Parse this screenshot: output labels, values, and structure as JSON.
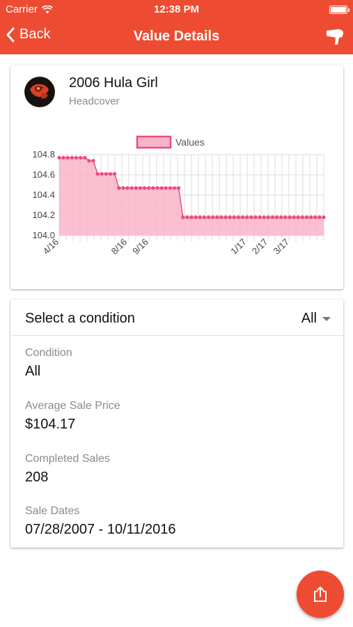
{
  "status_bar": {
    "carrier": "Carrier",
    "time": "12:38 PM",
    "icons": [
      "wifi-icon",
      "battery-icon"
    ]
  },
  "nav": {
    "back_label": "Back",
    "title": "Value Details",
    "back_icon": "chevron-left-icon",
    "action_icon": "golf-club-icon"
  },
  "item": {
    "name": "2006 Hula Girl",
    "type": "Headcover",
    "avatar_icon": "headcover-thumbnail"
  },
  "chart_data": {
    "type": "line",
    "legend": "Values",
    "legend_position": "top-center",
    "fill": true,
    "grid": true,
    "ylim": [
      104.0,
      104.8
    ],
    "yticks": [
      "104.8",
      "104.6",
      "104.4",
      "104.2",
      "104.0"
    ],
    "xtick_labels": [
      "4/16",
      "8/16",
      "9/16",
      "1/17",
      "2/17",
      "3/17"
    ],
    "series": [
      {
        "name": "Values",
        "values": [
          104.77,
          104.77,
          104.77,
          104.77,
          104.77,
          104.77,
          104.77,
          104.74,
          104.74,
          104.61,
          104.61,
          104.61,
          104.61,
          104.61,
          104.47,
          104.47,
          104.47,
          104.47,
          104.47,
          104.47,
          104.47,
          104.47,
          104.47,
          104.47,
          104.47,
          104.47,
          104.47,
          104.47,
          104.47,
          104.18,
          104.18,
          104.18,
          104.18,
          104.18,
          104.18,
          104.18,
          104.18,
          104.18,
          104.18,
          104.18,
          104.18,
          104.18,
          104.18,
          104.18,
          104.18,
          104.18,
          104.18,
          104.18,
          104.18,
          104.18,
          104.18,
          104.18,
          104.18,
          104.18,
          104.18,
          104.18,
          104.18,
          104.18,
          104.18,
          104.18,
          104.18,
          104.18,
          104.18
        ]
      }
    ],
    "colors": {
      "line": "#ec4c7a",
      "fill": "#f9b4c8",
      "grid": "#dcdcdc"
    }
  },
  "condition": {
    "select_label": "Select a condition",
    "selected": "All",
    "fields": [
      {
        "label": "Condition",
        "value": "All"
      },
      {
        "label": "Average Sale Price",
        "value": "$104.17"
      },
      {
        "label": "Completed Sales",
        "value": "208"
      },
      {
        "label": "Sale Dates",
        "value": "07/28/2007 - 10/11/2016"
      }
    ]
  },
  "fab": {
    "icon": "share-icon"
  },
  "colors": {
    "accent": "#ee4c32"
  }
}
